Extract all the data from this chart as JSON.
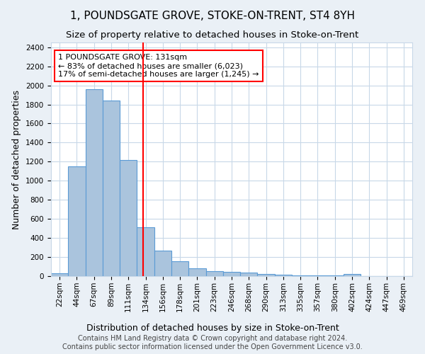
{
  "title": "1, POUNDSGATE GROVE, STOKE-ON-TRENT, ST4 8YH",
  "subtitle": "Size of property relative to detached houses in Stoke-on-Trent",
  "xlabel": "Distribution of detached houses by size in Stoke-on-Trent",
  "ylabel": "Number of detached properties",
  "categories": [
    "22sqm",
    "44sqm",
    "67sqm",
    "89sqm",
    "111sqm",
    "134sqm",
    "156sqm",
    "178sqm",
    "201sqm",
    "223sqm",
    "246sqm",
    "268sqm",
    "290sqm",
    "313sqm",
    "335sqm",
    "357sqm",
    "380sqm",
    "402sqm",
    "424sqm",
    "447sqm",
    "469sqm"
  ],
  "values": [
    30,
    1150,
    1960,
    1840,
    1220,
    510,
    265,
    155,
    80,
    50,
    45,
    40,
    20,
    15,
    10,
    5,
    5,
    20,
    0,
    0,
    0
  ],
  "bar_color": "#aac4dd",
  "bar_edge_color": "#5b9bd5",
  "annotation_text_line1": "1 POUNDSGATE GROVE: 131sqm",
  "annotation_text_line2": "← 83% of detached houses are smaller (6,023)",
  "annotation_text_line3": "17% of semi-detached houses are larger (1,245) →",
  "annotation_box_color": "white",
  "annotation_box_edge_color": "red",
  "vline_color": "red",
  "ylim": [
    0,
    2450
  ],
  "footer1": "Contains HM Land Registry data © Crown copyright and database right 2024.",
  "footer2": "Contains public sector information licensed under the Open Government Licence v3.0.",
  "bg_color": "#eaf0f6",
  "plot_bg_color": "white",
  "grid_color": "#c8d8e8",
  "title_fontsize": 11,
  "subtitle_fontsize": 9.5,
  "axis_label_fontsize": 9,
  "tick_fontsize": 7.5,
  "footer_fontsize": 7,
  "annotation_fontsize": 8
}
